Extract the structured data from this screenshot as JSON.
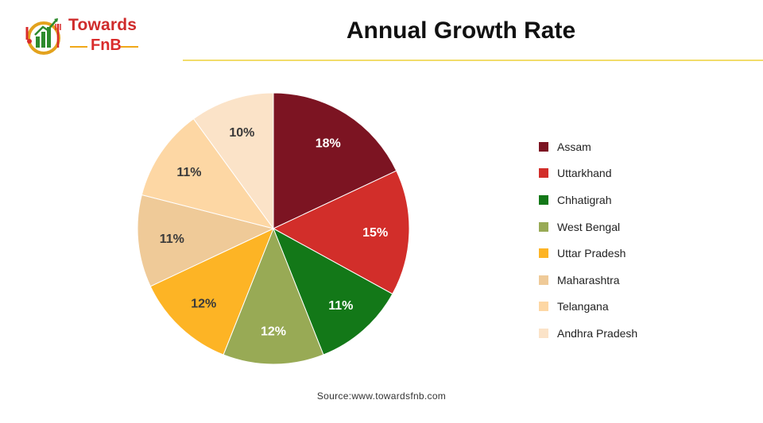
{
  "logo": {
    "word1": "Towards",
    "word2": "FnB"
  },
  "colors": {
    "Assam": "#7c1422",
    "Uttarkhand": "#d22e2a",
    "Chhatigrah": "#137818",
    "West Bengal": "#98aa55",
    "Uttar Pradesh": "#fdb425",
    "Maharashtra": "#efca98",
    "Telangana": "#fdd7a4",
    "Andhra Pradesh": "#fbe3c8"
  },
  "chart_data": {
    "type": "pie",
    "title": "Annual Growth Rate",
    "legend_position": "right",
    "slices": [
      {
        "label": "Assam",
        "value": 18,
        "display": "18%"
      },
      {
        "label": "Uttarkhand",
        "value": 15,
        "display": "15%"
      },
      {
        "label": "Chhatigrah",
        "value": 11,
        "display": "11%"
      },
      {
        "label": "West Bengal",
        "value": 12,
        "display": "12%"
      },
      {
        "label": "Uttar Pradesh",
        "value": 12,
        "display": "12%"
      },
      {
        "label": "Maharashtra",
        "value": 11,
        "display": "11%"
      },
      {
        "label": "Telangana",
        "value": 11,
        "display": "11%"
      },
      {
        "label": "Andhra Pradesh",
        "value": 10,
        "display": "10%"
      }
    ]
  },
  "source": "Source:www.towardsfnb.com"
}
